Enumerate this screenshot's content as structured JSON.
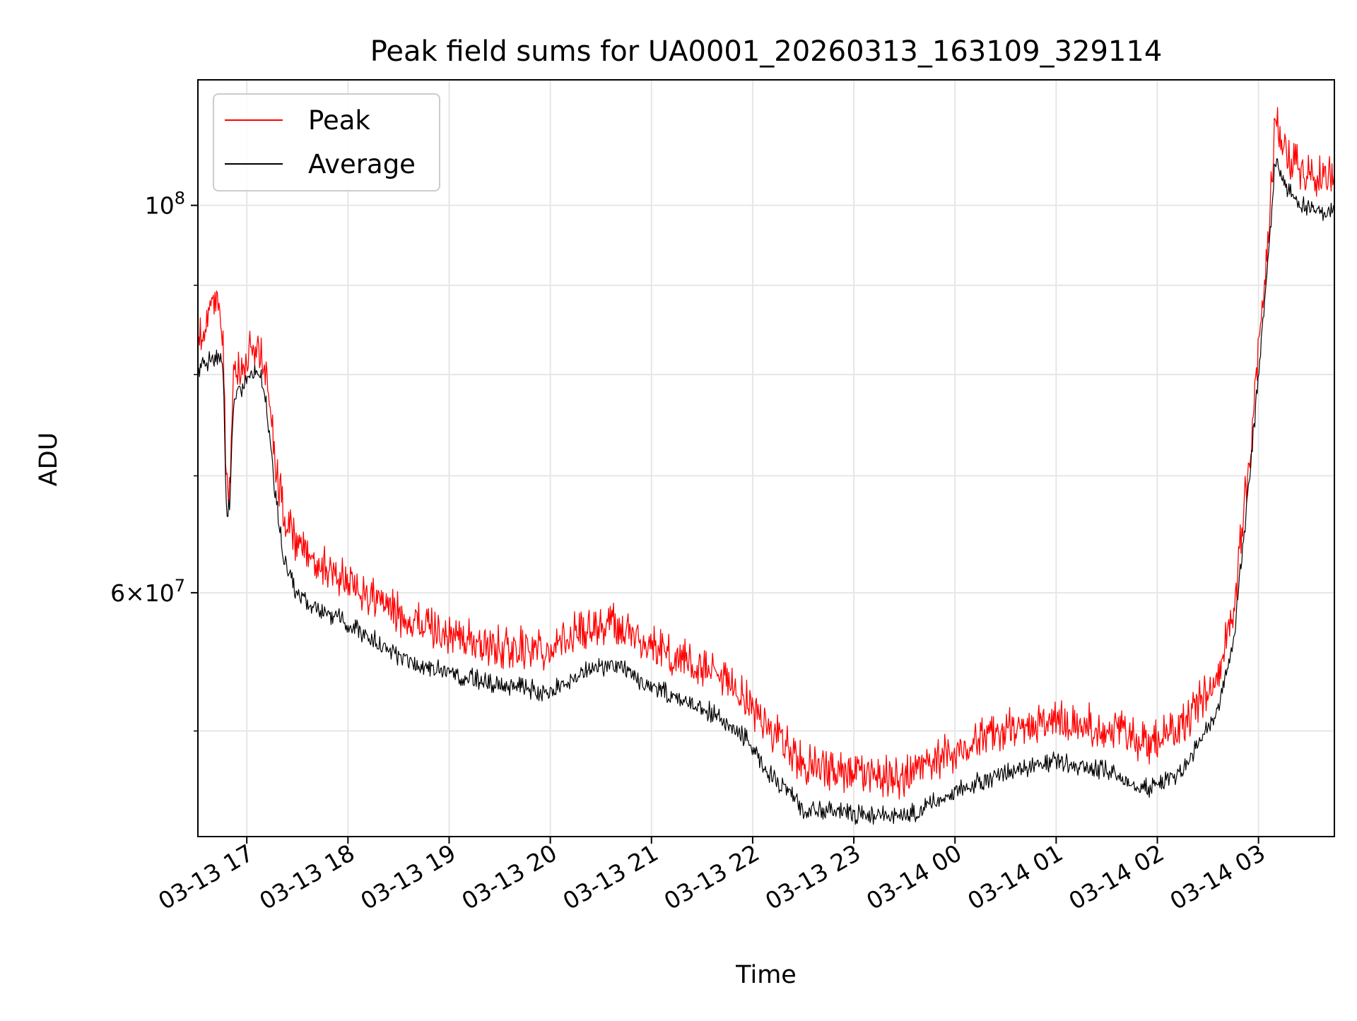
{
  "chart_data": {
    "type": "line",
    "title": "Peak field sums for UA0001_20260313_163109_329114",
    "xlabel": "Time",
    "ylabel": "ADU",
    "yscale": "log",
    "grid": true,
    "legend_position": "top-left",
    "xlim": [
      "2026-03-13 16:31",
      "2026-03-14 03:45"
    ],
    "ylim": [
      43500000,
      118000000
    ],
    "x_ticks": [
      {
        "value": "2026-03-13 17:00",
        "label": "03-13 17"
      },
      {
        "value": "2026-03-13 18:00",
        "label": "03-13 18"
      },
      {
        "value": "2026-03-13 19:00",
        "label": "03-13 19"
      },
      {
        "value": "2026-03-13 20:00",
        "label": "03-13 20"
      },
      {
        "value": "2026-03-13 21:00",
        "label": "03-13 21"
      },
      {
        "value": "2026-03-13 22:00",
        "label": "03-13 22"
      },
      {
        "value": "2026-03-13 23:00",
        "label": "03-13 23"
      },
      {
        "value": "2026-03-14 00:00",
        "label": "03-14 00"
      },
      {
        "value": "2026-03-14 01:00",
        "label": "03-14 01"
      },
      {
        "value": "2026-03-14 02:00",
        "label": "03-14 02"
      },
      {
        "value": "2026-03-14 03:00",
        "label": "03-14 03"
      }
    ],
    "y_ticks_major": [
      {
        "value": 60000000,
        "base": "6",
        "exp": "7"
      },
      {
        "value": 100000000,
        "base": "",
        "exp": "8"
      }
    ],
    "y_ticks_minor": [
      50000000,
      70000000,
      80000000,
      90000000
    ],
    "series": [
      {
        "name": "Peak",
        "color": "#ff0000",
        "noise": 0.06,
        "points": [
          [
            "2026-03-13 16:31",
            84000000
          ],
          [
            "2026-03-13 16:43",
            88000000
          ],
          [
            "2026-03-13 16:46",
            84000000
          ],
          [
            "2026-03-13 16:48",
            68000000
          ],
          [
            "2026-03-13 16:50",
            69000000
          ],
          [
            "2026-03-13 16:52",
            79000000
          ],
          [
            "2026-03-13 16:55",
            80000000
          ],
          [
            "2026-03-13 17:02",
            82000000
          ],
          [
            "2026-03-13 17:08",
            82000000
          ],
          [
            "2026-03-13 17:12",
            79000000
          ],
          [
            "2026-03-13 17:17",
            71000000
          ],
          [
            "2026-03-13 17:22",
            66000000
          ],
          [
            "2026-03-13 17:30",
            63500000
          ],
          [
            "2026-03-13 17:45",
            62000000
          ],
          [
            "2026-03-13 18:00",
            60500000
          ],
          [
            "2026-03-13 18:30",
            58000000
          ],
          [
            "2026-03-13 19:00",
            56500000
          ],
          [
            "2026-03-13 19:30",
            55500000
          ],
          [
            "2026-03-13 20:00",
            55500000
          ],
          [
            "2026-03-13 20:20",
            57000000
          ],
          [
            "2026-03-13 20:40",
            57300000
          ],
          [
            "2026-03-13 21:00",
            55500000
          ],
          [
            "2026-03-13 21:30",
            54000000
          ],
          [
            "2026-03-13 21:55",
            52000000
          ],
          [
            "2026-03-13 22:10",
            50000000
          ],
          [
            "2026-03-13 22:30",
            47500000
          ],
          [
            "2026-03-13 23:00",
            47000000
          ],
          [
            "2026-03-13 23:30",
            46800000
          ],
          [
            "2026-03-14 00:00",
            48500000
          ],
          [
            "2026-03-14 00:30",
            49800000
          ],
          [
            "2026-03-14 01:00",
            50400000
          ],
          [
            "2026-03-14 01:30",
            50000000
          ],
          [
            "2026-03-14 01:55",
            48800000
          ],
          [
            "2026-03-14 02:15",
            50000000
          ],
          [
            "2026-03-14 02:35",
            53500000
          ],
          [
            "2026-03-14 02:45",
            58000000
          ],
          [
            "2026-03-14 02:55",
            72000000
          ],
          [
            "2026-03-14 03:05",
            93000000
          ],
          [
            "2026-03-14 03:10",
            112000000
          ],
          [
            "2026-03-14 03:18",
            106000000
          ],
          [
            "2026-03-14 03:30",
            103500000
          ],
          [
            "2026-03-14 03:45",
            103500000
          ]
        ]
      },
      {
        "name": "Average",
        "color": "#000000",
        "noise": 0.028,
        "points": [
          [
            "2026-03-13 16:31",
            80500000
          ],
          [
            "2026-03-13 16:43",
            82000000
          ],
          [
            "2026-03-13 16:46",
            80000000
          ],
          [
            "2026-03-13 16:48",
            66000000
          ],
          [
            "2026-03-13 16:50",
            67500000
          ],
          [
            "2026-03-13 16:52",
            77000000
          ],
          [
            "2026-03-13 16:55",
            78000000
          ],
          [
            "2026-03-13 17:02",
            80000000
          ],
          [
            "2026-03-13 17:08",
            80000000
          ],
          [
            "2026-03-13 17:12",
            76000000
          ],
          [
            "2026-03-13 17:17",
            68000000
          ],
          [
            "2026-03-13 17:22",
            62500000
          ],
          [
            "2026-03-13 17:30",
            59500000
          ],
          [
            "2026-03-13 17:45",
            58500000
          ],
          [
            "2026-03-13 18:00",
            57500000
          ],
          [
            "2026-03-13 18:30",
            55000000
          ],
          [
            "2026-03-13 19:00",
            53800000
          ],
          [
            "2026-03-13 19:30",
            53000000
          ],
          [
            "2026-03-13 20:00",
            52500000
          ],
          [
            "2026-03-13 20:20",
            54000000
          ],
          [
            "2026-03-13 20:40",
            54500000
          ],
          [
            "2026-03-13 21:00",
            52800000
          ],
          [
            "2026-03-13 21:30",
            51500000
          ],
          [
            "2026-03-13 21:55",
            49500000
          ],
          [
            "2026-03-13 22:10",
            47200000
          ],
          [
            "2026-03-13 22:30",
            45000000
          ],
          [
            "2026-03-13 23:00",
            44700000
          ],
          [
            "2026-03-13 23:30",
            44500000
          ],
          [
            "2026-03-14 00:00",
            46000000
          ],
          [
            "2026-03-14 00:30",
            47300000
          ],
          [
            "2026-03-14 01:00",
            47900000
          ],
          [
            "2026-03-14 01:30",
            47300000
          ],
          [
            "2026-03-14 01:55",
            46200000
          ],
          [
            "2026-03-14 02:15",
            47300000
          ],
          [
            "2026-03-14 02:35",
            51000000
          ],
          [
            "2026-03-14 02:45",
            56000000
          ],
          [
            "2026-03-14 02:55",
            70000000
          ],
          [
            "2026-03-14 03:05",
            91000000
          ],
          [
            "2026-03-14 03:10",
            106000000
          ],
          [
            "2026-03-14 03:18",
            101500000
          ],
          [
            "2026-03-14 03:30",
            99000000
          ],
          [
            "2026-03-14 03:45",
            99000000
          ]
        ]
      }
    ]
  }
}
